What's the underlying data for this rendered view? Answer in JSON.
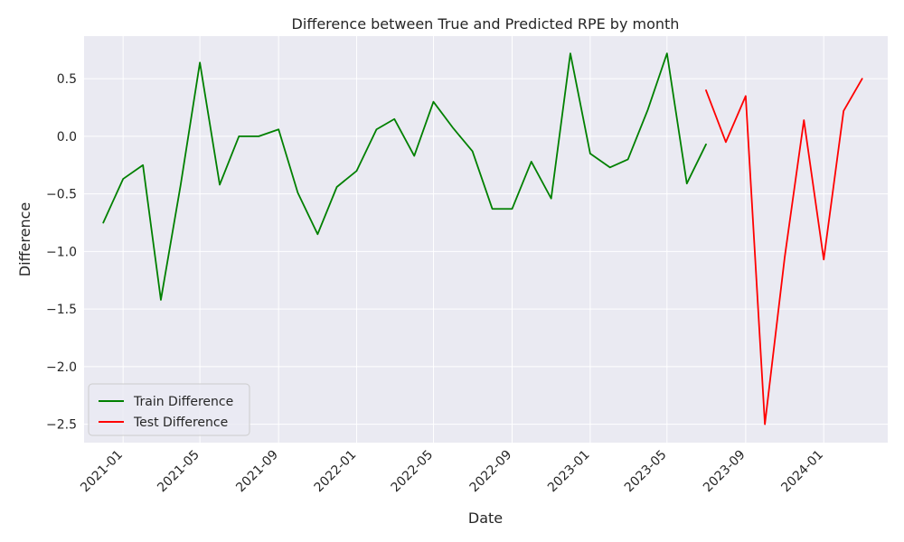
{
  "chart_data": {
    "type": "line",
    "title": "Difference between True and Predicted RPE by month",
    "xlabel": "Date",
    "ylabel": "Difference",
    "x_tick_labels": [
      "2021-01",
      "2021-05",
      "2021-09",
      "2022-01",
      "2022-05",
      "2022-09",
      "2023-01",
      "2023-05",
      "2023-09",
      "2024-01"
    ],
    "y_ticks": [
      0.5,
      0.0,
      -0.5,
      -1.0,
      -1.5,
      -2.0,
      -2.5
    ],
    "y_tick_labels": [
      "0.5",
      "0.0",
      "−0.5",
      "−1.0",
      "−1.5",
      "−2.0",
      "−2.5"
    ],
    "xlim": [
      "2020-11-01",
      "2024-04-10"
    ],
    "ylim": [
      -2.66,
      0.87
    ],
    "grid": true,
    "legend_position": "lower-left",
    "series": [
      {
        "name": "Train Difference",
        "color": "#008000",
        "points": [
          [
            "2020-12-01",
            -0.75
          ],
          [
            "2021-01-01",
            -0.37
          ],
          [
            "2021-02-01",
            -0.25
          ],
          [
            "2021-03-01",
            -1.42
          ],
          [
            "2021-04-01",
            -0.42
          ],
          [
            "2021-05-01",
            0.64
          ],
          [
            "2021-06-01",
            -0.42
          ],
          [
            "2021-07-01",
            0.0
          ],
          [
            "2021-08-01",
            0.0
          ],
          [
            "2021-09-01",
            0.06
          ],
          [
            "2021-10-01",
            -0.49
          ],
          [
            "2021-11-01",
            -0.85
          ],
          [
            "2021-12-01",
            -0.44
          ],
          [
            "2022-01-01",
            -0.3
          ],
          [
            "2022-02-01",
            0.06
          ],
          [
            "2022-03-01",
            0.15
          ],
          [
            "2022-04-01",
            -0.17
          ],
          [
            "2022-05-01",
            0.3
          ],
          [
            "2022-06-01",
            0.07
          ],
          [
            "2022-07-01",
            -0.13
          ],
          [
            "2022-08-01",
            -0.63
          ],
          [
            "2022-09-01",
            -0.63
          ],
          [
            "2022-10-01",
            -0.22
          ],
          [
            "2022-11-01",
            -0.54
          ],
          [
            "2022-12-01",
            0.72
          ],
          [
            "2023-01-01",
            -0.15
          ],
          [
            "2023-02-01",
            -0.27
          ],
          [
            "2023-03-01",
            -0.2
          ],
          [
            "2023-04-01",
            0.23
          ],
          [
            "2023-05-01",
            0.72
          ],
          [
            "2023-06-01",
            -0.41
          ],
          [
            "2023-07-01",
            -0.07
          ]
        ]
      },
      {
        "name": "Test Difference",
        "color": "#ff0000",
        "points": [
          [
            "2023-07-01",
            0.4
          ],
          [
            "2023-08-01",
            -0.05
          ],
          [
            "2023-09-01",
            0.35
          ],
          [
            "2023-10-01",
            -2.5
          ],
          [
            "2023-11-01",
            -1.05
          ],
          [
            "2023-12-01",
            0.14
          ],
          [
            "2024-01-01",
            -1.07
          ],
          [
            "2024-02-01",
            0.22
          ],
          [
            "2024-03-01",
            0.5
          ]
        ]
      }
    ]
  }
}
